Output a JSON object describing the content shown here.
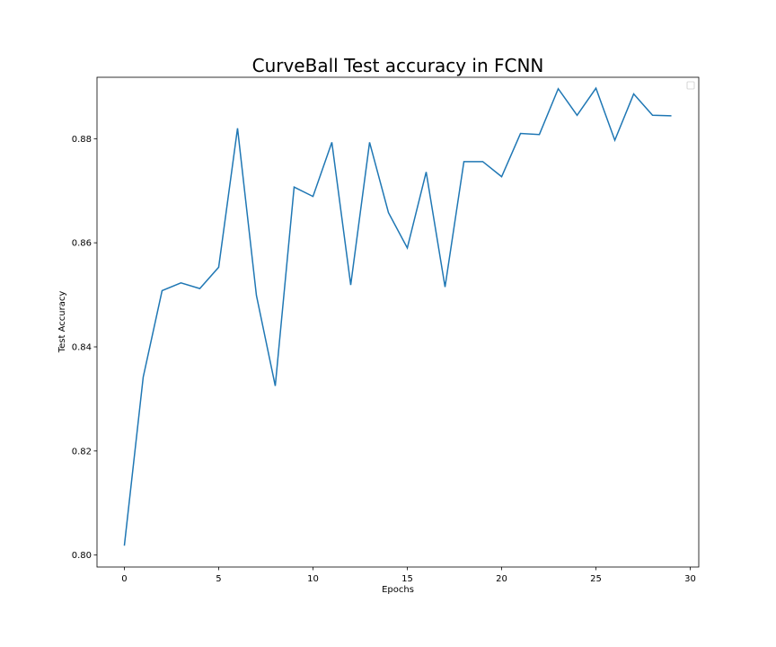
{
  "chart_data": {
    "type": "line",
    "title": "CurveBall Test accuracy in FCNN",
    "xlabel": "Epochs",
    "ylabel": "Test Accuracy",
    "xlim": [
      -1.45,
      30.45
    ],
    "ylim": [
      0.7977,
      0.8918
    ],
    "xticks": [
      0,
      5,
      10,
      15,
      20,
      25,
      30
    ],
    "yticks": [
      0.8,
      0.82,
      0.84,
      0.86,
      0.88
    ],
    "ytick_labels": [
      "0.80",
      "0.82",
      "0.84",
      "0.86",
      "0.88"
    ],
    "grid": false,
    "legend": "top-right",
    "line_color": "#1f77b4",
    "series": [
      {
        "x": [
          0,
          1,
          2,
          3,
          4,
          5,
          6,
          7,
          8,
          9,
          10,
          11,
          12,
          13,
          14,
          15,
          16,
          17,
          18,
          19,
          20,
          21,
          22,
          23,
          24,
          25,
          26,
          27,
          28,
          29
        ],
        "values": [
          0.8018,
          0.8342,
          0.8508,
          0.8523,
          0.8512,
          0.8553,
          0.882,
          0.8499,
          0.8325,
          0.8707,
          0.8689,
          0.8793,
          0.8519,
          0.8793,
          0.8658,
          0.859,
          0.8736,
          0.8515,
          0.8756,
          0.8756,
          0.8727,
          0.881,
          0.8808,
          0.8896,
          0.8845,
          0.8897,
          0.8797,
          0.8886,
          0.8845,
          0.8844
        ]
      }
    ]
  }
}
